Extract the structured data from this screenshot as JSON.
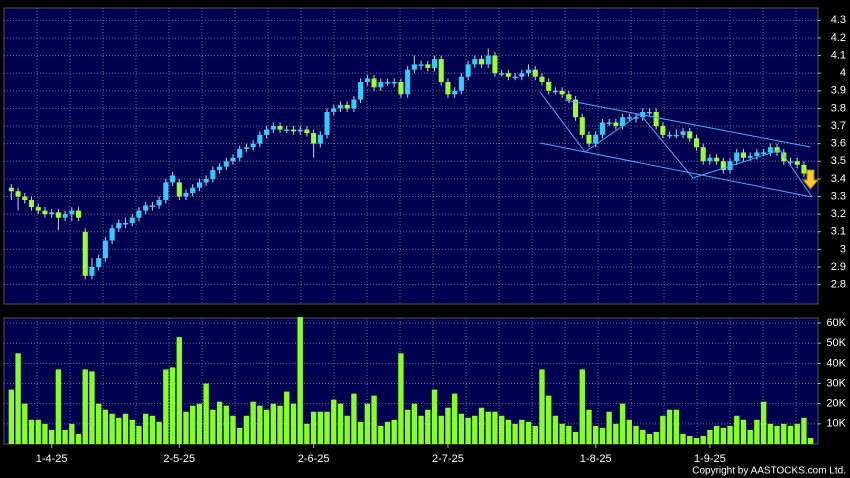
{
  "chart_data": {
    "type": "candlestick",
    "categories": [
      null,
      null,
      null,
      null,
      null,
      null,
      "1-4-25",
      null,
      null,
      null,
      null,
      null,
      null,
      null,
      null,
      null,
      null,
      null,
      null,
      null,
      null,
      null,
      null,
      null,
      null,
      "2-5-25",
      null,
      null,
      null,
      null,
      null,
      null,
      null,
      null,
      null,
      null,
      null,
      null,
      null,
      null,
      null,
      null,
      null,
      null,
      null,
      "2-6-25",
      null,
      null,
      null,
      null,
      null,
      null,
      null,
      null,
      null,
      null,
      null,
      null,
      null,
      null,
      null,
      null,
      null,
      null,
      null,
      "2-7-25",
      null,
      null,
      null,
      null,
      null,
      null,
      null,
      null,
      null,
      null,
      null,
      null,
      null,
      null,
      null,
      null,
      null,
      null,
      null,
      null,
      null,
      "1-8-25",
      null,
      null,
      null,
      null,
      null,
      null,
      null,
      null,
      null,
      null,
      null,
      null,
      null,
      null,
      null,
      null,
      "1-9-25",
      null,
      null,
      null,
      null,
      null,
      null,
      null,
      null,
      null,
      null,
      null,
      null,
      null,
      null,
      null
    ],
    "open": [
      3.35,
      3.33,
      3.3,
      3.28,
      3.24,
      3.22,
      3.2,
      3.21,
      3.18,
      3.2,
      3.22,
      3.1,
      2.85,
      2.9,
      2.95,
      3.05,
      3.12,
      3.15,
      3.15,
      3.18,
      3.22,
      3.25,
      3.25,
      3.28,
      3.38,
      3.38,
      3.3,
      3.32,
      3.35,
      3.38,
      3.4,
      3.45,
      3.47,
      3.5,
      3.52,
      3.57,
      3.58,
      3.6,
      3.65,
      3.68,
      3.7,
      3.68,
      3.68,
      3.67,
      3.68,
      3.66,
      3.6,
      3.65,
      3.78,
      3.8,
      3.82,
      3.8,
      3.85,
      3.95,
      3.97,
      3.92,
      3.95,
      3.95,
      3.95,
      3.88,
      4.02,
      4.05,
      4.05,
      4.03,
      4.08,
      3.95,
      3.88,
      3.9,
      3.98,
      4.05,
      4.08,
      4.05,
      4.1,
      4.0,
      4.0,
      3.98,
      3.98,
      4.0,
      4.02,
      3.98,
      3.95,
      3.9,
      3.9,
      3.88,
      3.85,
      3.75,
      3.65,
      3.6,
      3.65,
      3.72,
      3.72,
      3.7,
      3.75,
      3.75,
      3.75,
      3.78,
      3.78,
      3.7,
      3.65,
      3.65,
      3.65,
      3.67,
      3.63,
      3.58,
      3.5,
      3.52,
      3.5,
      3.45,
      3.5,
      3.55,
      3.52,
      3.53,
      3.55,
      3.55,
      3.58,
      3.55,
      3.5,
      3.5,
      3.48,
      3.43
    ],
    "high": [
      3.37,
      3.35,
      3.32,
      3.3,
      3.26,
      3.24,
      3.23,
      3.23,
      3.22,
      3.24,
      3.24,
      3.12,
      2.95,
      2.97,
      3.07,
      3.14,
      3.17,
      3.18,
      3.2,
      3.24,
      3.27,
      3.27,
      3.3,
      3.4,
      3.44,
      3.4,
      3.34,
      3.37,
      3.4,
      3.42,
      3.47,
      3.49,
      3.52,
      3.54,
      3.59,
      3.6,
      3.62,
      3.67,
      3.7,
      3.72,
      3.72,
      3.7,
      3.7,
      3.7,
      3.7,
      3.68,
      3.67,
      3.8,
      3.82,
      3.84,
      3.84,
      3.87,
      3.97,
      3.99,
      3.99,
      3.97,
      3.97,
      3.97,
      3.97,
      4.04,
      4.1,
      4.07,
      4.07,
      4.1,
      4.1,
      3.97,
      3.92,
      4.0,
      4.07,
      4.1,
      4.1,
      4.14,
      4.12,
      4.02,
      4.02,
      4.0,
      4.02,
      4.05,
      4.04,
      4.0,
      3.97,
      3.92,
      3.92,
      3.9,
      3.87,
      3.77,
      3.67,
      3.67,
      3.74,
      3.74,
      3.74,
      3.77,
      3.77,
      3.77,
      3.8,
      3.8,
      3.8,
      3.72,
      3.67,
      3.68,
      3.69,
      3.69,
      3.65,
      3.6,
      3.54,
      3.54,
      3.52,
      3.52,
      3.57,
      3.57,
      3.55,
      3.57,
      3.57,
      3.6,
      3.6,
      3.57,
      3.52,
      3.52,
      3.5,
      3.45
    ],
    "low": [
      3.28,
      3.22,
      3.26,
      3.22,
      3.2,
      3.18,
      3.18,
      3.11,
      3.16,
      3.16,
      3.16,
      2.83,
      2.83,
      2.88,
      2.93,
      3.03,
      3.1,
      3.12,
      3.13,
      3.16,
      3.2,
      3.22,
      3.23,
      3.26,
      3.36,
      3.28,
      3.28,
      3.3,
      3.33,
      3.36,
      3.38,
      3.43,
      3.45,
      3.48,
      3.5,
      3.55,
      3.56,
      3.58,
      3.63,
      3.66,
      3.66,
      3.66,
      3.65,
      3.65,
      3.64,
      3.52,
      3.58,
      3.63,
      3.76,
      3.78,
      3.78,
      3.78,
      3.83,
      3.93,
      3.9,
      3.9,
      3.93,
      3.92,
      3.86,
      3.86,
      4.0,
      4.02,
      4.01,
      4.01,
      3.93,
      3.86,
      3.86,
      3.88,
      3.96,
      4.03,
      4.03,
      4.03,
      3.98,
      3.98,
      3.96,
      3.96,
      3.96,
      3.98,
      3.96,
      3.93,
      3.88,
      3.88,
      3.86,
      3.83,
      3.73,
      3.63,
      3.58,
      3.58,
      3.63,
      3.7,
      3.68,
      3.68,
      3.73,
      3.72,
      3.73,
      3.76,
      3.68,
      3.63,
      3.63,
      3.63,
      3.63,
      3.61,
      3.56,
      3.48,
      3.48,
      3.48,
      3.43,
      3.43,
      3.48,
      3.5,
      3.5,
      3.51,
      3.53,
      3.53,
      3.53,
      3.48,
      3.48,
      3.46,
      3.41,
      3.36
    ],
    "close": [
      3.33,
      3.3,
      3.28,
      3.24,
      3.22,
      3.2,
      3.21,
      3.18,
      3.2,
      3.22,
      3.18,
      2.85,
      2.9,
      2.95,
      3.05,
      3.12,
      3.15,
      3.15,
      3.18,
      3.22,
      3.25,
      3.25,
      3.28,
      3.38,
      3.42,
      3.3,
      3.32,
      3.35,
      3.38,
      3.4,
      3.45,
      3.47,
      3.5,
      3.52,
      3.57,
      3.58,
      3.6,
      3.65,
      3.68,
      3.7,
      3.68,
      3.68,
      3.67,
      3.68,
      3.66,
      3.6,
      3.65,
      3.78,
      3.8,
      3.82,
      3.8,
      3.85,
      3.95,
      3.97,
      3.92,
      3.95,
      3.95,
      3.95,
      3.88,
      4.02,
      4.05,
      4.05,
      4.03,
      4.08,
      3.95,
      3.88,
      3.9,
      3.98,
      4.05,
      4.08,
      4.05,
      4.1,
      4.0,
      4.0,
      3.98,
      3.98,
      4.0,
      4.02,
      3.98,
      3.95,
      3.9,
      3.9,
      3.88,
      3.85,
      3.75,
      3.65,
      3.6,
      3.65,
      3.72,
      3.72,
      3.7,
      3.75,
      3.75,
      3.75,
      3.78,
      3.78,
      3.7,
      3.65,
      3.65,
      3.65,
      3.67,
      3.63,
      3.58,
      3.5,
      3.52,
      3.5,
      3.45,
      3.5,
      3.55,
      3.52,
      3.53,
      3.55,
      3.55,
      3.58,
      3.55,
      3.5,
      3.5,
      3.48,
      3.43,
      3.38
    ],
    "up_color": "#33ccff",
    "down_color": "#99ff33",
    "wick_color": "#d0d0d0",
    "ylim": [
      2.69,
      4.37
    ],
    "yticks": [
      2.8,
      2.9,
      3,
      3.1,
      3.2,
      3.3,
      3.4,
      3.5,
      3.6,
      3.7,
      3.8,
      3.9,
      4,
      4.1,
      4.2,
      4.3
    ],
    "grid": true,
    "volume": {
      "color": "#88ff22",
      "values": [
        27000,
        45000,
        20000,
        12000,
        12000,
        10000,
        7000,
        37000,
        7000,
        10000,
        5000,
        37000,
        36000,
        20000,
        17000,
        15000,
        13000,
        15000,
        12000,
        9000,
        15000,
        14000,
        11000,
        37000,
        38000,
        53000,
        16000,
        19000,
        20000,
        30000,
        17000,
        21000,
        19000,
        14000,
        8000,
        14000,
        21000,
        19000,
        17000,
        20000,
        19000,
        26000,
        20000,
        63000,
        10000,
        16000,
        16000,
        16000,
        22000,
        20000,
        14000,
        25000,
        11000,
        20000,
        24000,
        9000,
        11000,
        12000,
        45000,
        17000,
        20000,
        14000,
        17000,
        27000,
        14000,
        18000,
        25000,
        15000,
        13000,
        14000,
        18000,
        16000,
        16000,
        14000,
        12000,
        10000,
        12000,
        11000,
        9000,
        37000,
        24000,
        14000,
        10000,
        9000,
        6000,
        37000,
        17000,
        9000,
        8000,
        16000,
        10000,
        20000,
        12000,
        9000,
        7000,
        5000,
        6000,
        14000,
        17000,
        17000,
        5000,
        4000,
        3000,
        4000,
        7000,
        9000,
        8000,
        9000,
        14000,
        12000,
        7000,
        12000,
        21000,
        10000,
        9000,
        10000,
        9000,
        10000,
        13000,
        3000
      ],
      "ylim": [
        0,
        62500
      ],
      "yticks": [
        {
          "value": 10000,
          "label": "10K"
        },
        {
          "value": 20000,
          "label": "20K"
        },
        {
          "value": 30000,
          "label": "30K"
        },
        {
          "value": 40000,
          "label": "40K"
        },
        {
          "value": 50000,
          "label": "50K"
        },
        {
          "value": 60000,
          "label": "60K"
        }
      ]
    },
    "copyright": "Copyright by AASTOCKS.com Ltd."
  }
}
